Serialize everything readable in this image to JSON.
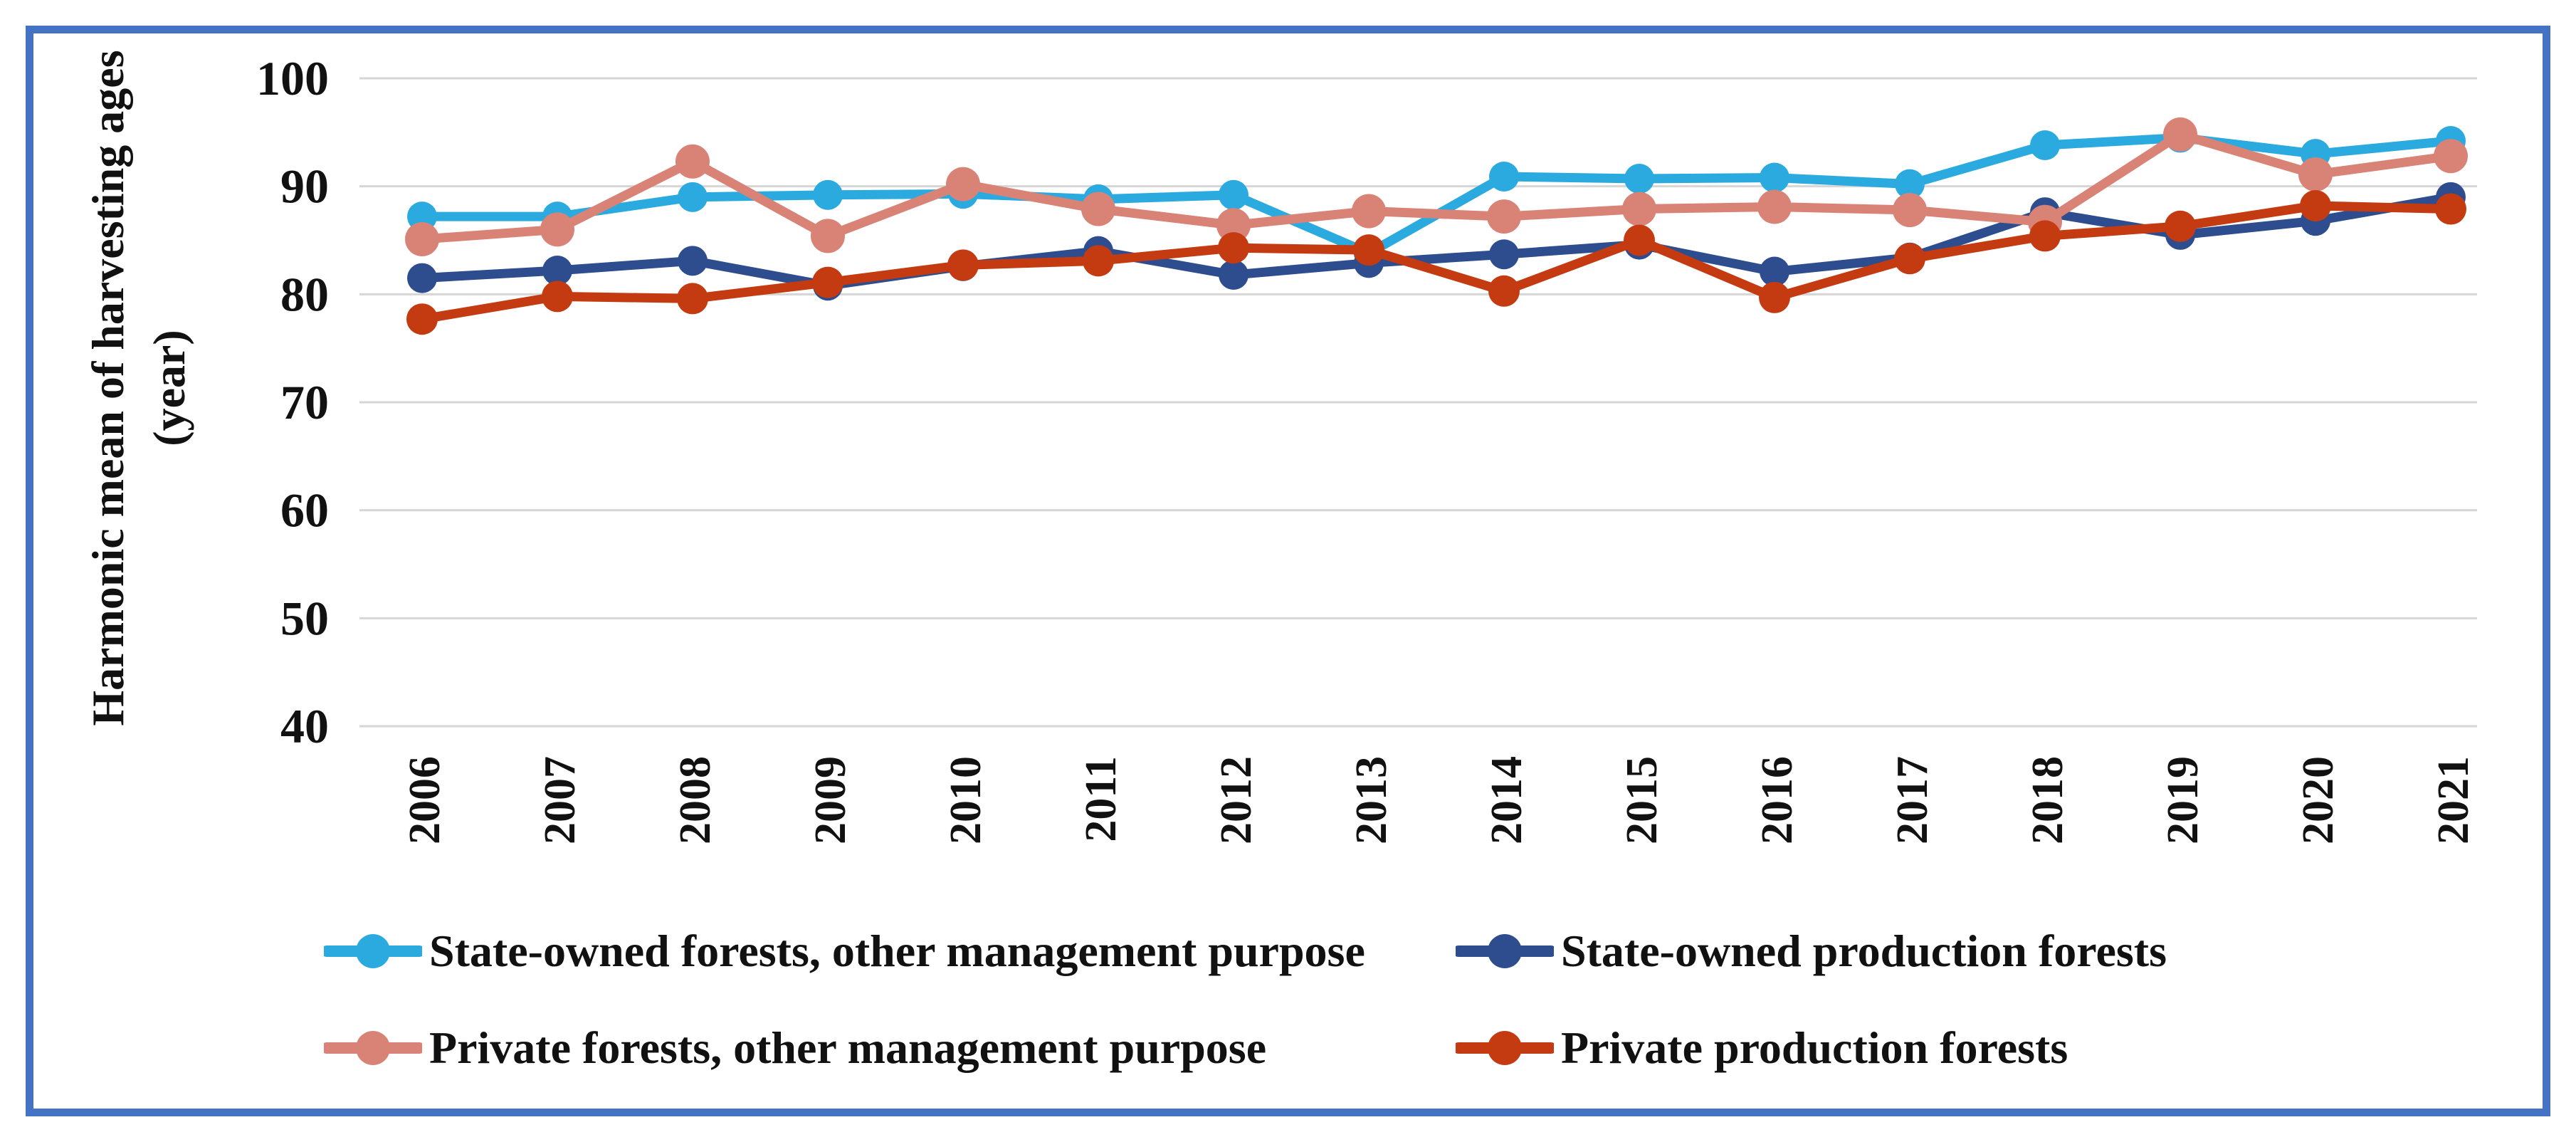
{
  "figure": {
    "border_color": "#4472c4",
    "background": "#ffffff",
    "text_color": "#111111",
    "gridline_color": "#d6d6d6"
  },
  "chart_data": {
    "type": "line",
    "title": "",
    "xlabel": "",
    "ylabel_line1": "Harmonic mean of harvesting ages",
    "ylabel_line2": "(year)",
    "x_tick_labels": [
      "2006",
      "2007",
      "2008",
      "2009",
      "2010",
      "2011",
      "2012",
      "2013",
      "2014",
      "2015",
      "2016",
      "2017",
      "2018",
      "2019",
      "2020",
      "2021"
    ],
    "y_ticks": [
      100,
      90,
      80,
      70,
      60,
      50,
      40
    ],
    "ylim": [
      40,
      100
    ],
    "grid": "horizontal",
    "legend_position": "bottom",
    "series": [
      {
        "name": "State-owned forests, other management purpose",
        "color": "#2baadf",
        "values": [
          87.2,
          87.2,
          89.0,
          89.2,
          89.3,
          88.8,
          89.2,
          83.8,
          90.9,
          90.7,
          90.8,
          90.2,
          93.8,
          94.5,
          93.0,
          94.2
        ]
      },
      {
        "name": "State-owned production forests",
        "color": "#2e4d8e",
        "values": [
          81.5,
          82.2,
          83.1,
          80.8,
          82.6,
          84.0,
          81.8,
          82.9,
          83.7,
          84.6,
          82.1,
          83.4,
          87.6,
          85.5,
          86.8,
          89.0
        ]
      },
      {
        "name": "Private forests, other management purpose",
        "color": "#d98377",
        "values": [
          85.1,
          86.0,
          92.3,
          85.4,
          90.2,
          87.9,
          86.4,
          87.7,
          87.2,
          87.9,
          88.1,
          87.8,
          86.7,
          94.8,
          91.1,
          92.8
        ]
      },
      {
        "name": "Private production forests",
        "color": "#c43b12",
        "values": [
          77.7,
          79.8,
          79.6,
          81.1,
          82.7,
          83.1,
          84.3,
          84.1,
          80.3,
          85.0,
          79.7,
          83.3,
          85.4,
          86.3,
          88.2,
          87.9
        ]
      }
    ],
    "legend_rows": [
      [
        0,
        1
      ],
      [
        2,
        3
      ]
    ]
  }
}
